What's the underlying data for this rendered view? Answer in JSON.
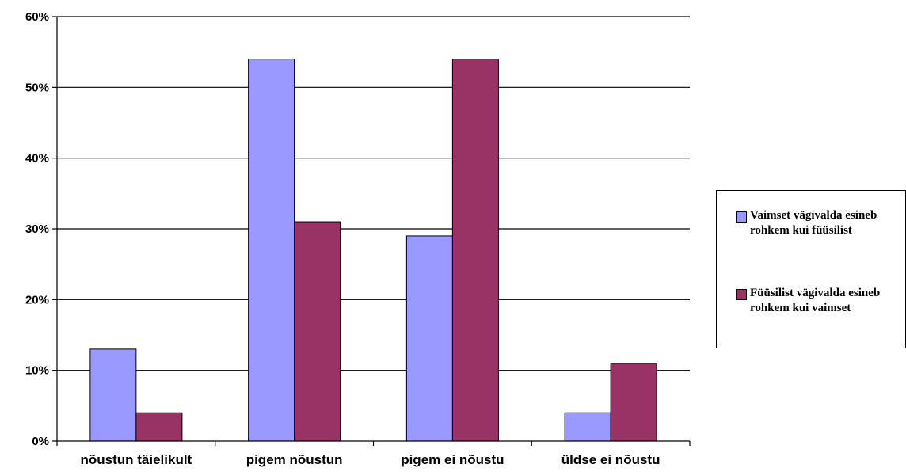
{
  "chart_data": {
    "type": "bar",
    "categories": [
      "nõustun täielikult",
      "pigem nõustun",
      "pigem ei nõustu",
      "üldse ei nõustu"
    ],
    "series": [
      {
        "name": "Vaimset vägivalda esineb rohkem kui füüsilist",
        "values": [
          13,
          54,
          29,
          4
        ],
        "color": "#9999ff"
      },
      {
        "name": "Füüsilist vägivalda esineb rohkem kui vaimset",
        "values": [
          4,
          31,
          54,
          11
        ],
        "color": "#993366"
      }
    ],
    "yticks": [
      "0%",
      "10%",
      "20%",
      "30%",
      "40%",
      "50%",
      "60%"
    ],
    "ylim": [
      0,
      60
    ],
    "grid": true,
    "legend_position": "right"
  }
}
